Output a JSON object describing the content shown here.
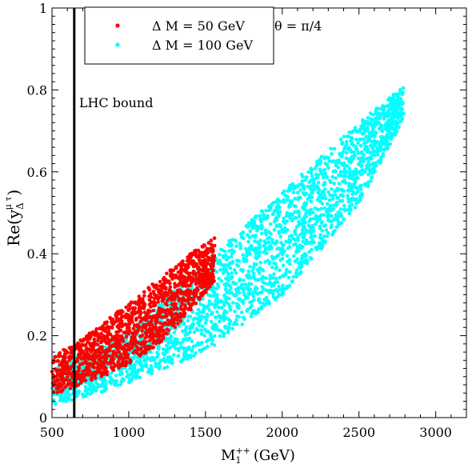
{
  "chart_data": {
    "type": "scatter",
    "xlabel": "M",
    "xlabel_sub": "1",
    "xlabel_sup": "++",
    "xlabel_unit": "(GeV)",
    "ylabel": "Re(y",
    "ylabel_sub": "Δ",
    "ylabel_sup": "μ τ",
    "ylabel_close": ")",
    "xlim": [
      500,
      3200
    ],
    "ylim": [
      0,
      1
    ],
    "xticks": [
      500,
      1000,
      1500,
      2000,
      2500,
      3000
    ],
    "yticks": [
      0,
      0.2,
      0.4,
      0.6,
      0.8,
      1
    ],
    "xtick_labels": [
      "500",
      "1000",
      "1500",
      "2000",
      "2500",
      "3000"
    ],
    "ytick_labels": [
      "0",
      "0.2",
      "0.4",
      "0.6",
      "0.8",
      "1"
    ],
    "annotation": "θ = π/4",
    "vline": {
      "x": 645,
      "label": "LHC bound"
    },
    "legend_position": "top-left",
    "series": [
      {
        "name": "Δ M = 50 GeV",
        "color": "#ff0000",
        "x_range": [
          500,
          1560
        ],
        "y_lower": [
          [
            500,
            0.055
          ],
          [
            645,
            0.075
          ],
          [
            800,
            0.095
          ],
          [
            1000,
            0.13
          ],
          [
            1200,
            0.18
          ],
          [
            1400,
            0.26
          ],
          [
            1560,
            0.33
          ]
        ],
        "y_upper": [
          [
            500,
            0.15
          ],
          [
            645,
            0.18
          ],
          [
            800,
            0.22
          ],
          [
            1000,
            0.28
          ],
          [
            1200,
            0.34
          ],
          [
            1400,
            0.4
          ],
          [
            1560,
            0.44
          ]
        ]
      },
      {
        "name": "Δ M = 100 GeV",
        "color": "#00ffff",
        "x_range": [
          500,
          2790
        ],
        "y_lower": [
          [
            500,
            0.03
          ],
          [
            800,
            0.06
          ],
          [
            1000,
            0.085
          ],
          [
            1500,
            0.16
          ],
          [
            2000,
            0.3
          ],
          [
            2500,
            0.52
          ],
          [
            2790,
            0.73
          ]
        ],
        "y_upper": [
          [
            500,
            0.12
          ],
          [
            800,
            0.17
          ],
          [
            1000,
            0.21
          ],
          [
            1500,
            0.38
          ],
          [
            2000,
            0.55
          ],
          [
            2500,
            0.72
          ],
          [
            2790,
            0.81
          ]
        ]
      }
    ]
  }
}
